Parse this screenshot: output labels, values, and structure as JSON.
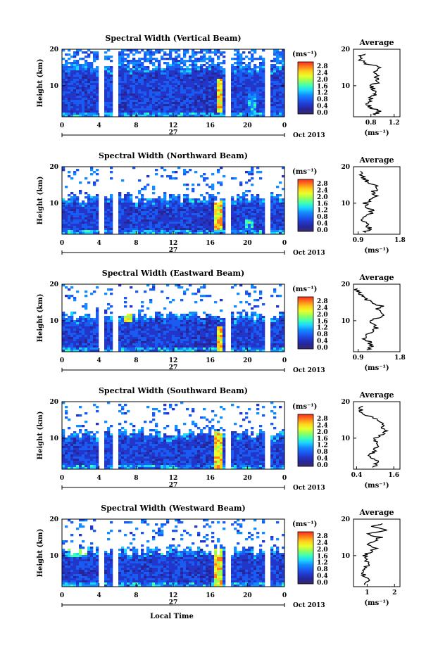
{
  "figure": {
    "xaxis_title": "Local Time",
    "month_label": "Oct 2013",
    "day_label": "27",
    "ylabel": "Height (km)",
    "unit_label": "(ms⁻¹)",
    "avg_title": "Average",
    "avg_xlabel": "(ms⁻¹)"
  },
  "colorbar": {
    "ticks": [
      "2.8",
      "2.4",
      "2.0",
      "1.6",
      "1.2",
      "0.8",
      "0.4",
      "0.0"
    ],
    "colors": [
      "#ff2a1f",
      "#ff7d1a",
      "#ffcf1d",
      "#e9ff2a",
      "#96ff5a",
      "#3fffb4",
      "#1dd6ff",
      "#138cff",
      "#1a5cf2",
      "#2237c9",
      "#26269a",
      "#3a2a6b"
    ]
  },
  "chart_data": [
    {
      "type": "heatmap",
      "title": "Spectral Width (Vertical Beam)",
      "x_ticks": [
        "0",
        "4",
        "8",
        "12",
        "16",
        "20",
        "0"
      ],
      "y_ticks": [
        "20",
        "10"
      ],
      "xlim": [
        0,
        24
      ],
      "ylim": [
        1.5,
        20
      ],
      "colorbar_range": [
        0.0,
        3.0
      ],
      "data_gaps_hours": [
        [
          3.7,
          4.3
        ],
        [
          5.3,
          6.0
        ],
        [
          17.5,
          18.2
        ],
        [
          21.8,
          22.3
        ],
        [
          22.8,
          23.0
        ]
      ],
      "intense_regions": [
        {
          "x": [
            16.5,
            17.3
          ],
          "y": [
            3,
            12
          ],
          "value": 2.8
        },
        {
          "x": [
            19.8,
            20.8
          ],
          "y": [
            3,
            8
          ],
          "value": 1.6
        }
      ],
      "profile": {
        "xlim": [
          0.5,
          1.3
        ],
        "x_ticks": [
          "0.8",
          "1.2"
        ],
        "y_ticks": [
          "20",
          "10"
        ],
        "height_km": [
          2,
          3,
          4,
          5,
          6,
          7,
          8,
          9,
          10,
          11,
          12,
          13,
          14,
          15,
          16,
          17,
          18,
          19
        ],
        "value": [
          0.85,
          0.95,
          0.8,
          0.75,
          0.78,
          0.82,
          0.9,
          0.85,
          0.8,
          0.95,
          0.88,
          0.92,
          0.85,
          1.0,
          0.72,
          0.62,
          0.6,
          0.7
        ]
      }
    },
    {
      "type": "heatmap",
      "title": "Spectral Width (Northward Beam)",
      "x_ticks": [
        "0",
        "4",
        "8",
        "12",
        "16",
        "20",
        "0"
      ],
      "y_ticks": [
        "20",
        "10"
      ],
      "xlim": [
        0,
        24
      ],
      "ylim": [
        1.5,
        20
      ],
      "colorbar_range": [
        0.0,
        3.0
      ],
      "data_gaps_hours": [
        [
          3.7,
          4.3
        ],
        [
          5.3,
          6.0
        ],
        [
          17.5,
          18.2
        ],
        [
          21.8,
          22.3
        ],
        [
          22.8,
          23.0
        ]
      ],
      "intense_regions": [
        {
          "x": [
            16.3,
            17.2
          ],
          "y": [
            3,
            11
          ],
          "value": 2.8
        },
        {
          "x": [
            19.5,
            20.5
          ],
          "y": [
            3,
            6
          ],
          "value": 1.8
        }
      ],
      "profile": {
        "xlim": [
          0.8,
          1.8
        ],
        "x_ticks": [
          "0.9",
          "1.8"
        ],
        "y_ticks": [
          "20",
          "10"
        ],
        "height_km": [
          2,
          3,
          4,
          5,
          6,
          7,
          8,
          9,
          10,
          11,
          12,
          13,
          14,
          15,
          16,
          17,
          18,
          19
        ],
        "value": [
          1.05,
          1.15,
          1.1,
          1.0,
          1.05,
          1.15,
          1.2,
          1.1,
          1.05,
          1.2,
          1.3,
          1.2,
          1.35,
          1.25,
          1.1,
          1.0,
          0.95,
          0.9
        ]
      }
    },
    {
      "type": "heatmap",
      "title": "Spectral Width (Eastward Beam)",
      "x_ticks": [
        "0",
        "4",
        "8",
        "12",
        "16",
        "20",
        "0"
      ],
      "y_ticks": [
        "20",
        "10"
      ],
      "xlim": [
        0,
        24
      ],
      "ylim": [
        1.5,
        20
      ],
      "colorbar_range": [
        0.0,
        3.0
      ],
      "data_gaps_hours": [
        [
          3.7,
          4.3
        ],
        [
          5.3,
          6.0
        ],
        [
          17.5,
          18.2
        ],
        [
          21.8,
          22.3
        ],
        [
          22.8,
          23.0
        ]
      ],
      "intense_regions": [
        {
          "x": [
            16.5,
            17.3
          ],
          "y": [
            2,
            9
          ],
          "value": 2.8
        },
        {
          "x": [
            6.5,
            7.5
          ],
          "y": [
            10,
            12
          ],
          "value": 2.4
        }
      ],
      "profile": {
        "xlim": [
          0.8,
          1.8
        ],
        "x_ticks": [
          "0.9",
          "1.8"
        ],
        "y_ticks": [
          "20",
          "10"
        ],
        "height_km": [
          2,
          3,
          4,
          5,
          6,
          7,
          8,
          9,
          10,
          11,
          12,
          13,
          14,
          15,
          16,
          17,
          18,
          19
        ],
        "value": [
          1.1,
          1.2,
          1.15,
          1.05,
          1.1,
          1.2,
          1.3,
          1.25,
          1.15,
          1.35,
          1.45,
          1.3,
          1.4,
          1.2,
          1.05,
          0.95,
          0.9,
          0.85
        ]
      }
    },
    {
      "type": "heatmap",
      "title": "Spectral Width (Southward Beam)",
      "x_ticks": [
        "0",
        "4",
        "8",
        "12",
        "16",
        "20",
        "0"
      ],
      "y_ticks": [
        "20",
        "10"
      ],
      "xlim": [
        0,
        24
      ],
      "ylim": [
        1.5,
        20
      ],
      "colorbar_range": [
        0.0,
        3.0
      ],
      "data_gaps_hours": [
        [
          3.7,
          4.3
        ],
        [
          5.3,
          6.0
        ],
        [
          17.5,
          18.2
        ],
        [
          21.8,
          22.3
        ],
        [
          22.8,
          23.0
        ]
      ],
      "intense_regions": [
        {
          "x": [
            16.4,
            17.3
          ],
          "y": [
            2,
            12
          ],
          "value": 2.8
        }
      ],
      "profile": {
        "xlim": [
          0.3,
          1.8
        ],
        "x_ticks": [
          "0.4",
          "1.6"
        ],
        "y_ticks": [
          "20",
          "10"
        ],
        "height_km": [
          2,
          3,
          4,
          5,
          6,
          7,
          8,
          9,
          10,
          11,
          12,
          13,
          14,
          15,
          16,
          17,
          18,
          19
        ],
        "value": [
          0.9,
          1.05,
          1.0,
          0.85,
          0.9,
          1.0,
          1.1,
          1.05,
          0.95,
          1.2,
          1.35,
          1.15,
          1.3,
          1.05,
          0.8,
          0.6,
          0.5,
          0.55
        ]
      }
    },
    {
      "type": "heatmap",
      "title": "Spectral Width (Westward Beam)",
      "x_ticks": [
        "0",
        "4",
        "8",
        "12",
        "16",
        "20",
        "0"
      ],
      "y_ticks": [
        "20",
        "10"
      ],
      "xlim": [
        0,
        24
      ],
      "ylim": [
        1.5,
        20
      ],
      "colorbar_range": [
        0.0,
        3.0
      ],
      "data_gaps_hours": [
        [
          3.7,
          4.3
        ],
        [
          5.3,
          6.0
        ],
        [
          17.5,
          18.2
        ],
        [
          21.8,
          22.3
        ],
        [
          22.8,
          23.0
        ]
      ],
      "intense_regions": [
        {
          "x": [
            16.3,
            17.3
          ],
          "y": [
            2,
            12
          ],
          "value": 2.8
        },
        {
          "x": [
            0.5,
            2.5
          ],
          "y": [
            10,
            12
          ],
          "value": 2.0
        }
      ],
      "profile": {
        "xlim": [
          0.5,
          2.2
        ],
        "x_ticks": [
          "1",
          "2"
        ],
        "y_ticks": [
          "20",
          "10"
        ],
        "height_km": [
          2,
          3,
          4,
          5,
          6,
          7,
          8,
          9,
          10,
          11,
          12,
          13,
          14,
          15,
          16,
          17,
          18,
          19
        ],
        "value": [
          0.9,
          1.0,
          0.95,
          0.85,
          0.9,
          1.0,
          1.05,
          0.95,
          0.9,
          1.1,
          1.3,
          1.05,
          1.25,
          1.5,
          0.95,
          1.7,
          1.2,
          1.6
        ]
      }
    }
  ]
}
